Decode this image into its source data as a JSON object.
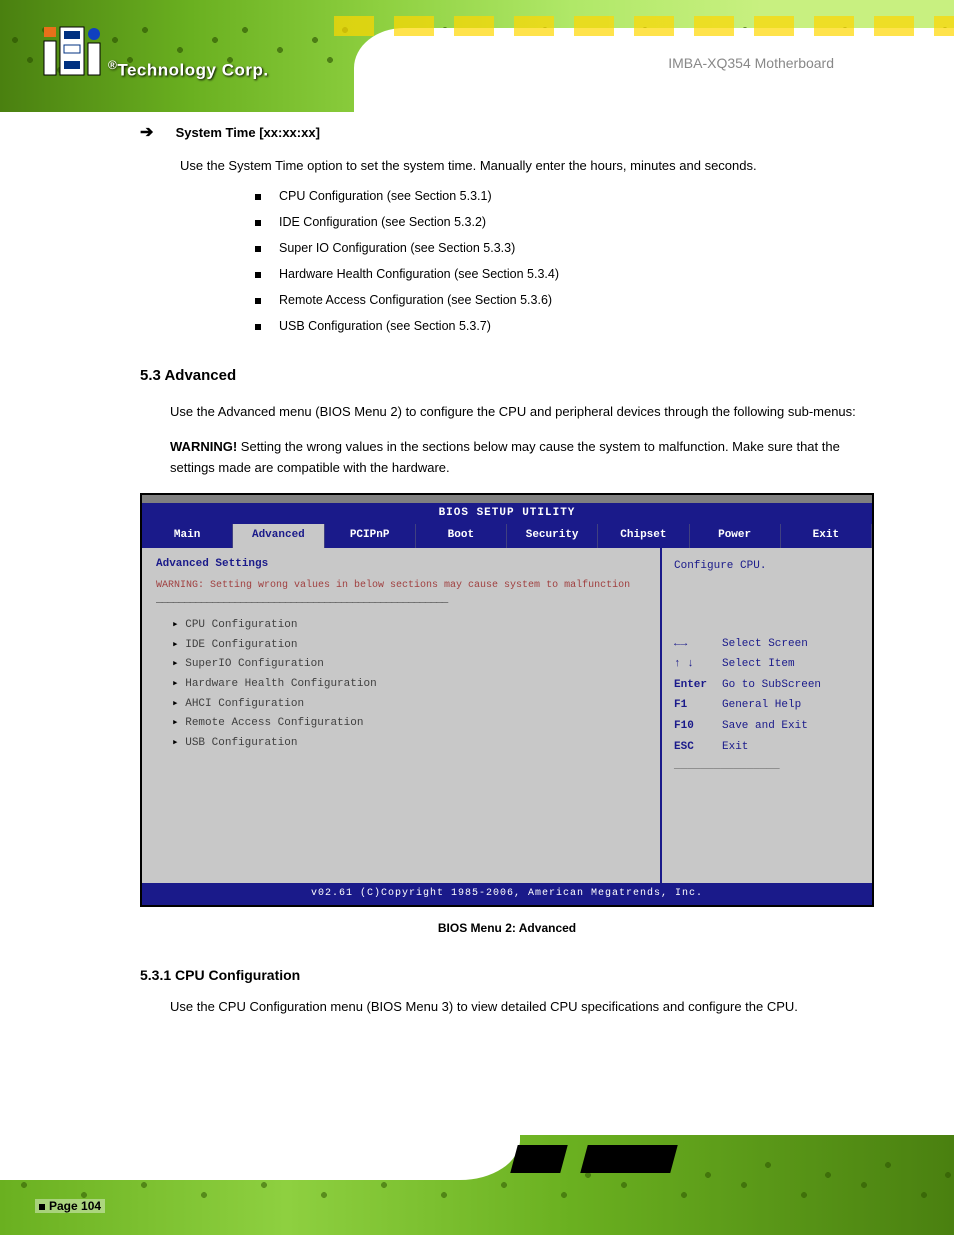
{
  "header": {
    "logo_text": "Technology Corp.",
    "doc_title": "IMBA-XQ354 Motherboard"
  },
  "content": {
    "arrow_section": {
      "label": "System Time [xx:xx:xx]",
      "para": "Use the System Time option to set the system time. Manually enter the hours, minutes and seconds."
    },
    "sub_bullets": [
      "CPU Configuration (see Section 5.3.1)",
      "IDE Configuration (see Section 5.3.2)",
      "Super IO Configuration (see Section 5.3.3)",
      "Hardware Health Configuration (see Section 5.3.4)",
      "Remote Access Configuration (see Section 5.3.6)",
      "USB Configuration (see Section 5.3.7)"
    ],
    "section53": {
      "num": "5.3 Advanced",
      "para1": "Use the Advanced menu (BIOS Menu 2) to configure the CPU and peripheral devices through the following sub-menus:",
      "warn_title": "WARNING!",
      "warn_body": "Setting the wrong values in the sections below may cause the system to malfunction. Make sure that the settings made are compatible with the hardware."
    },
    "bios": {
      "setup_title": "BIOS SETUP UTILITY",
      "tabs": [
        "Main",
        "Advanced",
        "PCIPnP",
        "Boot",
        "Security",
        "Chipset",
        "Power",
        "Exit"
      ],
      "active_tab": 1,
      "group_title": "Advanced Settings",
      "warning_line": "WARNING: Setting wrong values in below sections may cause system to malfunction",
      "items": [
        "CPU Configuration",
        "IDE Configuration",
        "SuperIO Configuration",
        "Hardware Health Configuration",
        "AHCI Configuration",
        "Remote Access Configuration",
        "USB Configuration"
      ],
      "help_top": "Configure CPU.",
      "help": [
        {
          "k": "←→",
          "v": "Select Screen"
        },
        {
          "k": "↑ ↓",
          "v": "Select Item"
        },
        {
          "k": "Enter",
          "v": "Go to SubScreen"
        },
        {
          "k": "F1",
          "v": "General Help"
        },
        {
          "k": "F10",
          "v": "Save and Exit"
        },
        {
          "k": "ESC",
          "v": "Exit"
        }
      ],
      "footer": "v02.61 (C)Copyright 1985-2006, American Megatrends, Inc."
    },
    "fig_caption": "BIOS Menu 2: Advanced",
    "sub531": {
      "head": "5.3.1 CPU Configuration",
      "body": "Use the CPU Configuration menu (BIOS Menu 3) to view detailed CPU specifications and configure the CPU."
    }
  },
  "footer": {
    "page": "Page 104"
  },
  "colors": {
    "bios_blue": "#1a1a8a",
    "bios_gray": "#c8c8c8",
    "circuit_green": "#6ab020"
  }
}
